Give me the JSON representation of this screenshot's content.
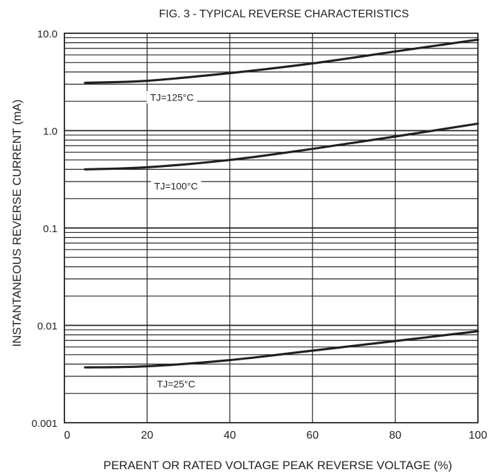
{
  "chart_data": {
    "type": "line",
    "title": "FIG. 3 - TYPICAL REVERSE CHARACTERISTICS",
    "xlabel": "PERAENT OR RATED VOLTAGE PEAK REVERSE VOLTAGE (%)",
    "ylabel": "INSTANTANEOUS REVERSE CURRENT (mA)",
    "xlim": [
      0,
      100
    ],
    "ylim": [
      0.001,
      10
    ],
    "yscale": "log",
    "grid": true,
    "x_ticks": [
      0,
      20,
      40,
      60,
      80,
      100
    ],
    "x_tick_labels": [
      "0",
      "20",
      "40",
      "60",
      "80",
      "100"
    ],
    "y_ticks": [
      0.001,
      0.01,
      0.1,
      1,
      10
    ],
    "y_tick_labels": [
      "0.001",
      "0.01",
      "0.1",
      "1.0",
      "10.0"
    ],
    "line_color": "#231f20",
    "series": [
      {
        "name": "TJ=125°C",
        "x": [
          5,
          20,
          40,
          60,
          80,
          100
        ],
        "y": [
          3.1,
          3.25,
          3.9,
          4.9,
          6.5,
          8.6
        ],
        "label_at": [
          26,
          2.2
        ]
      },
      {
        "name": "TJ=100°C",
        "x": [
          5,
          20,
          40,
          60,
          80,
          100
        ],
        "y": [
          0.4,
          0.42,
          0.5,
          0.65,
          0.87,
          1.18
        ],
        "label_at": [
          27,
          0.27
        ]
      },
      {
        "name": "TJ=25°C",
        "x": [
          5,
          20,
          40,
          60,
          80,
          100
        ],
        "y": [
          0.0037,
          0.0038,
          0.0044,
          0.0055,
          0.0069,
          0.0087
        ],
        "label_at": [
          27,
          0.0025
        ]
      }
    ]
  }
}
